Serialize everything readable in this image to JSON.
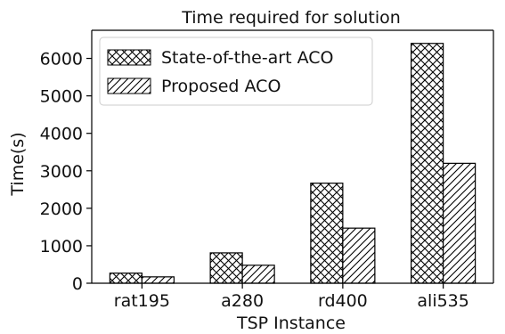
{
  "chart_data": {
    "type": "bar",
    "title": "Time required for solution",
    "xlabel": "TSP Instance",
    "ylabel": "Time(s)",
    "categories": [
      "rat195",
      "a280",
      "rd400",
      "ali535"
    ],
    "series": [
      {
        "name": "State-of-the-art ACO",
        "values": [
          270,
          810,
          2670,
          6400
        ],
        "pattern": "crosshatch"
      },
      {
        "name": "Proposed ACO",
        "values": [
          170,
          480,
          1470,
          3200
        ],
        "pattern": "diagonal"
      }
    ],
    "ylim": [
      0,
      6750
    ],
    "yticks": [
      0,
      1000,
      2000,
      3000,
      4000,
      5000,
      6000
    ],
    "legend_position": "top-left",
    "grid": false,
    "colors": {
      "bar_fill": "#ffffff",
      "bar_edge": "#000000",
      "axis": "#000000"
    }
  }
}
